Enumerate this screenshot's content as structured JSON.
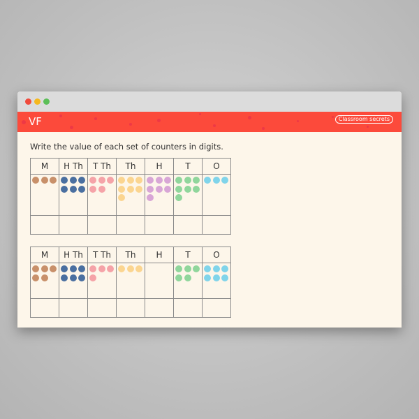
{
  "window": {
    "banner_title": "VF",
    "logo_text": "Classroom secrets"
  },
  "instruction": "Write the value of each set of counters in digits.",
  "columns": [
    "M",
    "H Th",
    "T Th",
    "Th",
    "H",
    "T",
    "O"
  ],
  "column_colors": [
    "#c8906a",
    "#4a6fa0",
    "#f5a3a8",
    "#fbd590",
    "#d8a6d6",
    "#90d69c",
    "#80d4ea"
  ],
  "tables": [
    {
      "counters": [
        3,
        6,
        5,
        7,
        7,
        7,
        3
      ],
      "answers": [
        "",
        "",
        "",
        "",
        "",
        "",
        ""
      ]
    },
    {
      "counters": [
        5,
        6,
        4,
        3,
        0,
        5,
        6
      ],
      "answers": [
        "",
        "",
        "",
        "",
        "",
        "",
        ""
      ]
    }
  ]
}
